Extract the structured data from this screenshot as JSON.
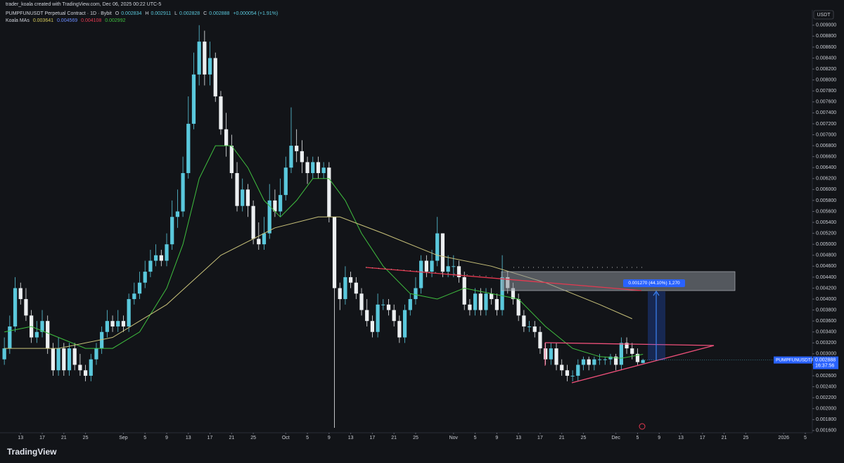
{
  "header": {
    "credit": "trader_koala created with TradingView.com, Dec 06, 2025 00:22 UTC-5",
    "symbol_line": "PUMPFUNUSDT Perpetual Contract · 1D · Bybit",
    "ohlc_letters": [
      "O",
      "H",
      "L",
      "C"
    ],
    "change": "+0.000054 (+1.91%)",
    "ma_title": "Koala MAs",
    "ma_values": [
      "0.003641",
      "0.004569",
      "0.004108",
      "0.002992"
    ],
    "currency": "USDT",
    "price_tag": "PUMPFUNUSDT.P",
    "countdown": "16:37:56",
    "measure_label": "0.001270 (44.10%) 1,270",
    "brand": "TradingView"
  },
  "chart_data": {
    "type": "candlestick",
    "up_color": "#5ac8dc",
    "down_color": "#eceff1",
    "open": [
      0.0029,
      0.0031,
      0.0035,
      0.0042,
      0.004,
      0.0037,
      0.0033,
      0.0034,
      0.0036,
      0.0031,
      0.0027,
      0.0031,
      0.0027,
      0.0031,
      0.0028,
      0.0027,
      0.0026,
      0.0029,
      0.0031,
      0.0034,
      0.0036,
      0.0035,
      0.0036,
      0.0035,
      0.004,
      0.0041,
      0.0043,
      0.0045,
      0.0047,
      0.0048,
      0.0047,
      0.005,
      0.0055,
      0.0056,
      0.0063,
      0.0072,
      0.0081,
      0.0087,
      0.0081,
      0.0084,
      0.0077,
      0.0071,
      0.0068,
      0.0063,
      0.0057,
      0.006,
      0.0057,
      0.0051,
      0.005,
      0.0052,
      0.0058,
      0.0056,
      0.0059,
      0.0064,
      0.0068,
      0.0067,
      0.0065,
      0.0063,
      0.0065,
      0.0063,
      0.0064,
      0.0055,
      0.0042,
      0.004,
      0.0044,
      0.0043,
      0.0041,
      0.0038,
      0.0036,
      0.0034,
      0.0039,
      0.0039,
      0.0038,
      0.0036,
      0.0033,
      0.0038,
      0.004,
      0.0042,
      0.0047,
      0.0045,
      0.0047,
      0.0052,
      0.0045,
      0.0046,
      0.0046,
      0.0044,
      0.0039,
      0.0038,
      0.0041,
      0.0038,
      0.0041,
      0.004,
      0.0038,
      0.0044,
      0.0042,
      0.004,
      0.0037,
      0.0035,
      0.0035,
      0.0034,
      0.0031,
      0.0029,
      0.0031,
      0.0028,
      0.0027,
      0.0026,
      0.0026,
      0.0028,
      0.0029,
      0.0028,
      0.0029,
      0.0029,
      0.0029,
      0.00295,
      0.0028,
      0.0032,
      0.0031,
      0.003,
      0.002834
    ],
    "high": [
      0.0033,
      0.0037,
      0.0044,
      0.0043,
      0.0042,
      0.0038,
      0.0036,
      0.0038,
      0.0037,
      0.0032,
      0.0033,
      0.0032,
      0.0032,
      0.0032,
      0.003,
      0.0028,
      0.003,
      0.0032,
      0.0035,
      0.0038,
      0.0037,
      0.0038,
      0.0037,
      0.0041,
      0.0043,
      0.0045,
      0.0047,
      0.0049,
      0.005,
      0.0049,
      0.0052,
      0.0058,
      0.006,
      0.0066,
      0.0077,
      0.0085,
      0.009,
      0.0089,
      0.0087,
      0.0085,
      0.0078,
      0.0074,
      0.007,
      0.0065,
      0.0062,
      0.0061,
      0.0058,
      0.0054,
      0.0055,
      0.0061,
      0.006,
      0.0062,
      0.0066,
      0.0075,
      0.0071,
      0.0069,
      0.0066,
      0.0066,
      0.0066,
      0.0065,
      0.0065,
      0.0055,
      0.0043,
      0.0046,
      0.0045,
      0.0044,
      0.0042,
      0.004,
      0.0037,
      0.0041,
      0.004,
      0.004,
      0.0039,
      0.0037,
      0.0039,
      0.0041,
      0.0044,
      0.0048,
      0.0048,
      0.0049,
      0.0055,
      0.0052,
      0.0048,
      0.0048,
      0.0047,
      0.0045,
      0.004,
      0.0042,
      0.0042,
      0.0042,
      0.0042,
      0.0041,
      0.0048,
      0.0045,
      0.0043,
      0.0041,
      0.0038,
      0.0036,
      0.0036,
      0.0035,
      0.0032,
      0.0032,
      0.0032,
      0.0029,
      0.0028,
      0.0027,
      0.0029,
      0.00295,
      0.00295,
      0.00295,
      0.003,
      0.00295,
      0.003,
      0.003,
      0.0033,
      0.0033,
      0.0032,
      0.0031,
      0.002911
    ],
    "low": [
      0.0028,
      0.003,
      0.0034,
      0.0039,
      0.0036,
      0.0032,
      0.0032,
      0.0033,
      0.003,
      0.0026,
      0.0026,
      0.0026,
      0.0026,
      0.0027,
      0.0026,
      0.0025,
      0.0025,
      0.0028,
      0.003,
      0.0033,
      0.0034,
      0.0034,
      0.0034,
      0.0034,
      0.0039,
      0.004,
      0.0042,
      0.0044,
      0.0046,
      0.0046,
      0.0046,
      0.0049,
      0.0053,
      0.0055,
      0.0062,
      0.0071,
      0.0079,
      0.0079,
      0.0079,
      0.0076,
      0.007,
      0.0066,
      0.0062,
      0.0056,
      0.0056,
      0.0055,
      0.005,
      0.0049,
      0.0049,
      0.0051,
      0.0055,
      0.0055,
      0.0058,
      0.0063,
      0.0065,
      0.0063,
      0.0061,
      0.0062,
      0.0062,
      0.0062,
      0.0054,
      0.00165,
      0.0038,
      0.0039,
      0.0042,
      0.004,
      0.0037,
      0.0035,
      0.0033,
      0.0033,
      0.0038,
      0.0037,
      0.0035,
      0.0032,
      0.0032,
      0.0037,
      0.0039,
      0.0041,
      0.0044,
      0.0044,
      0.0046,
      0.0044,
      0.0044,
      0.0044,
      0.0043,
      0.0038,
      0.0037,
      0.0037,
      0.0037,
      0.0037,
      0.0039,
      0.0037,
      0.0037,
      0.0041,
      0.0039,
      0.0036,
      0.0034,
      0.0034,
      0.0033,
      0.003,
      0.0028,
      0.0028,
      0.0027,
      0.0026,
      0.0025,
      0.0025,
      0.0025,
      0.0027,
      0.0027,
      0.0027,
      0.0028,
      0.0028,
      0.0028,
      0.0027,
      0.0027,
      0.003,
      0.0029,
      0.0028,
      0.002828
    ],
    "close": [
      0.0031,
      0.0035,
      0.0042,
      0.004,
      0.0037,
      0.0033,
      0.0034,
      0.0036,
      0.0031,
      0.0027,
      0.0031,
      0.0027,
      0.0031,
      0.0028,
      0.0027,
      0.0026,
      0.0029,
      0.0031,
      0.0034,
      0.0036,
      0.0035,
      0.0036,
      0.0035,
      0.004,
      0.0041,
      0.0043,
      0.0045,
      0.0047,
      0.0048,
      0.0047,
      0.005,
      0.0055,
      0.0056,
      0.0063,
      0.0072,
      0.0081,
      0.0087,
      0.0081,
      0.0084,
      0.0077,
      0.0071,
      0.0068,
      0.0063,
      0.0057,
      0.006,
      0.0057,
      0.0051,
      0.005,
      0.0052,
      0.0058,
      0.0056,
      0.0059,
      0.0064,
      0.0068,
      0.0067,
      0.0065,
      0.0063,
      0.0065,
      0.0063,
      0.0064,
      0.0055,
      0.0042,
      0.004,
      0.0044,
      0.0043,
      0.0041,
      0.0038,
      0.0036,
      0.0034,
      0.0039,
      0.0039,
      0.0038,
      0.0036,
      0.0033,
      0.0038,
      0.004,
      0.0042,
      0.0047,
      0.0045,
      0.0047,
      0.0052,
      0.0045,
      0.0046,
      0.0046,
      0.0044,
      0.0039,
      0.0038,
      0.0041,
      0.0038,
      0.0041,
      0.004,
      0.0038,
      0.0044,
      0.0042,
      0.004,
      0.0037,
      0.0035,
      0.0035,
      0.0034,
      0.0031,
      0.0029,
      0.0031,
      0.0028,
      0.0027,
      0.0026,
      0.0026,
      0.0028,
      0.0029,
      0.0028,
      0.0029,
      0.0029,
      0.0029,
      0.00295,
      0.0028,
      0.0032,
      0.0031,
      0.003,
      0.00285,
      0.002888
    ],
    "ma_series": [
      {
        "color": "#3fbf3f",
        "x": [
          0,
          5,
          10,
          15,
          20,
          25,
          30,
          33,
          36,
          39,
          42,
          45,
          48,
          51,
          54,
          57,
          60,
          63,
          66,
          70,
          75,
          80,
          85,
          90,
          95,
          100,
          105,
          110,
          114,
          118
        ],
        "values": [
          0.0034,
          0.0035,
          0.0033,
          0.0031,
          0.0031,
          0.0034,
          0.0042,
          0.005,
          0.0062,
          0.0068,
          0.0068,
          0.0064,
          0.0058,
          0.0055,
          0.0058,
          0.0062,
          0.0062,
          0.0058,
          0.0052,
          0.0046,
          0.0041,
          0.004,
          0.0042,
          0.0041,
          0.004,
          0.0035,
          0.0031,
          0.00295,
          0.00292,
          0.002992
        ]
      },
      {
        "color": "#c9c27a",
        "x": [
          0,
          10,
          20,
          30,
          40,
          50,
          58,
          62,
          70,
          80,
          90,
          100,
          110,
          116
        ],
        "values": [
          0.0031,
          0.0031,
          0.0033,
          0.0039,
          0.0048,
          0.0053,
          0.0055,
          0.0055,
          0.0052,
          0.0048,
          0.0046,
          0.0043,
          0.0039,
          0.003641
        ]
      }
    ],
    "xlim": [
      -0.8,
      149.3
    ],
    "xticks": [
      {
        "value": 3,
        "label": "13"
      },
      {
        "value": 7,
        "label": "17"
      },
      {
        "value": 11,
        "label": "21"
      },
      {
        "value": 15,
        "label": "25"
      },
      {
        "value": 22,
        "label": "Sep"
      },
      {
        "value": 26,
        "label": "5"
      },
      {
        "value": 30,
        "label": "9"
      },
      {
        "value": 34,
        "label": "13"
      },
      {
        "value": 38,
        "label": "17"
      },
      {
        "value": 42,
        "label": "21"
      },
      {
        "value": 46,
        "label": "25"
      },
      {
        "value": 52,
        "label": "Oct"
      },
      {
        "value": 56,
        "label": "5"
      },
      {
        "value": 60,
        "label": "9"
      },
      {
        "value": 64,
        "label": "13"
      },
      {
        "value": 68,
        "label": "17"
      },
      {
        "value": 72,
        "label": "21"
      },
      {
        "value": 76,
        "label": "25"
      },
      {
        "value": 83,
        "label": "Nov"
      },
      {
        "value": 87,
        "label": "5"
      },
      {
        "value": 91,
        "label": "9"
      },
      {
        "value": 95,
        "label": "13"
      },
      {
        "value": 99,
        "label": "17"
      },
      {
        "value": 103,
        "label": "21"
      },
      {
        "value": 107,
        "label": "25"
      },
      {
        "value": 113,
        "label": "Dec"
      },
      {
        "value": 117,
        "label": "5"
      },
      {
        "value": 121,
        "label": "9"
      },
      {
        "value": 125,
        "label": "13"
      },
      {
        "value": 129,
        "label": "17"
      },
      {
        "value": 133,
        "label": "21"
      },
      {
        "value": 137,
        "label": "25"
      },
      {
        "value": 144,
        "label": "2026"
      },
      {
        "value": 148,
        "label": "5"
      }
    ],
    "ylim": [
      0.00156,
      0.00928
    ],
    "yticks": [
      {
        "value": 0.0016,
        "label": "0.001600"
      },
      {
        "value": 0.0018,
        "label": "0.001800"
      },
      {
        "value": 0.002,
        "label": "0.002000"
      },
      {
        "value": 0.0022,
        "label": "0.002200"
      },
      {
        "value": 0.0024,
        "label": "0.002400"
      },
      {
        "value": 0.0026,
        "label": "0.002600"
      },
      {
        "value": 0.0028,
        "label": "0.002800"
      },
      {
        "value": 0.003,
        "label": "0.003000"
      },
      {
        "value": 0.0032,
        "label": "0.003200"
      },
      {
        "value": 0.0034,
        "label": "0.003400"
      },
      {
        "value": 0.0036,
        "label": "0.003600"
      },
      {
        "value": 0.0038,
        "label": "0.003800"
      },
      {
        "value": 0.004,
        "label": "0.004000"
      },
      {
        "value": 0.0042,
        "label": "0.004200"
      },
      {
        "value": 0.0044,
        "label": "0.004400"
      },
      {
        "value": 0.0046,
        "label": "0.004600"
      },
      {
        "value": 0.0048,
        "label": "0.004800"
      },
      {
        "value": 0.005,
        "label": "0.005000"
      },
      {
        "value": 0.0052,
        "label": "0.005200"
      },
      {
        "value": 0.0054,
        "label": "0.005400"
      },
      {
        "value": 0.0056,
        "label": "0.005600"
      },
      {
        "value": 0.0058,
        "label": "0.005800"
      },
      {
        "value": 0.006,
        "label": "0.006000"
      },
      {
        "value": 0.0062,
        "label": "0.006200"
      },
      {
        "value": 0.0064,
        "label": "0.006400"
      },
      {
        "value": 0.0066,
        "label": "0.006600"
      },
      {
        "value": 0.0068,
        "label": "0.006800"
      },
      {
        "value": 0.007,
        "label": "0.007000"
      },
      {
        "value": 0.0072,
        "label": "0.007200"
      },
      {
        "value": 0.0074,
        "label": "0.007400"
      },
      {
        "value": 0.0076,
        "label": "0.007600"
      },
      {
        "value": 0.0078,
        "label": "0.007800"
      },
      {
        "value": 0.008,
        "label": "0.008000"
      },
      {
        "value": 0.0082,
        "label": "0.008200"
      },
      {
        "value": 0.0084,
        "label": "0.008400"
      },
      {
        "value": 0.0086,
        "label": "0.008600"
      },
      {
        "value": 0.0088,
        "label": "0.008800"
      },
      {
        "value": 0.009,
        "label": "0.009000"
      }
    ],
    "grid": false
  }
}
